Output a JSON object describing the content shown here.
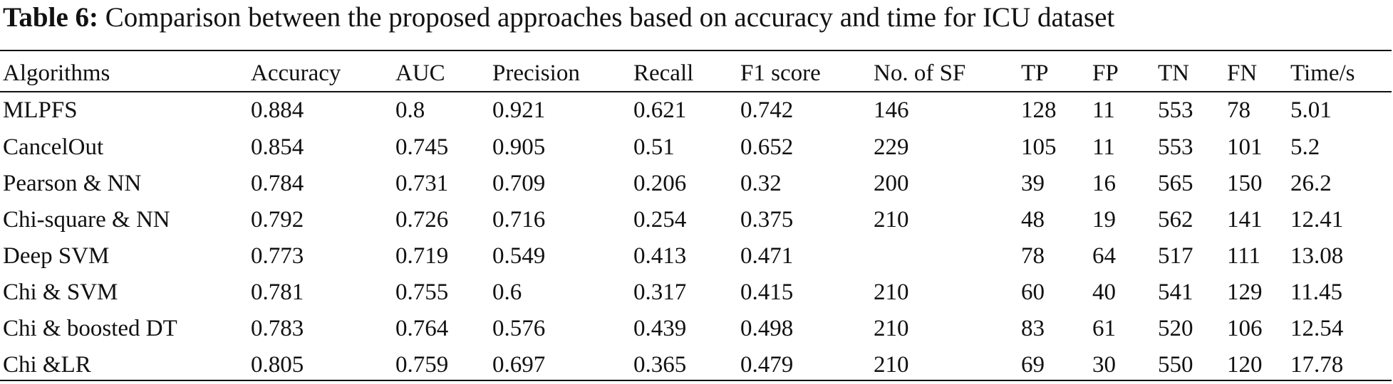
{
  "caption": {
    "label": "Table 6:",
    "text": " Comparison between the proposed approaches based on accuracy and time for ICU dataset"
  },
  "table": {
    "headers": [
      "Algorithms",
      "Accuracy",
      "AUC",
      "Precision",
      "Recall",
      "F1 score",
      "No. of SF",
      "TP",
      "FP",
      "TN",
      "FN",
      "Time/s"
    ],
    "rows": [
      [
        "MLPFS",
        "0.884",
        "0.8",
        "0.921",
        "0.621",
        "0.742",
        "146",
        "128",
        "11",
        "553",
        "78",
        "5.01"
      ],
      [
        "CancelOut",
        "0.854",
        "0.745",
        "0.905",
        "0.51",
        "0.652",
        "229",
        "105",
        "11",
        "553",
        "101",
        "5.2"
      ],
      [
        "Pearson & NN",
        "0.784",
        "0.731",
        "0.709",
        "0.206",
        "0.32",
        "200",
        "39",
        "16",
        "565",
        "150",
        "26.2"
      ],
      [
        "Chi-square & NN",
        "0.792",
        "0.726",
        "0.716",
        "0.254",
        "0.375",
        "210",
        "48",
        "19",
        "562",
        "141",
        "12.41"
      ],
      [
        "Deep SVM",
        "0.773",
        "0.719",
        "0.549",
        "0.413",
        "0.471",
        "",
        "78",
        "64",
        "517",
        "111",
        "13.08"
      ],
      [
        "Chi & SVM",
        "0.781",
        "0.755",
        "0.6",
        "0.317",
        "0.415",
        "210",
        "60",
        "40",
        "541",
        "129",
        "11.45"
      ],
      [
        "Chi & boosted DT",
        "0.783",
        "0.764",
        "0.576",
        "0.439",
        "0.498",
        "210",
        "83",
        "61",
        "520",
        "106",
        "12.54"
      ],
      [
        "Chi &LR",
        "0.805",
        "0.759",
        "0.697",
        "0.365",
        "0.479",
        "210",
        "69",
        "30",
        "550",
        "120",
        "17.78"
      ]
    ]
  }
}
